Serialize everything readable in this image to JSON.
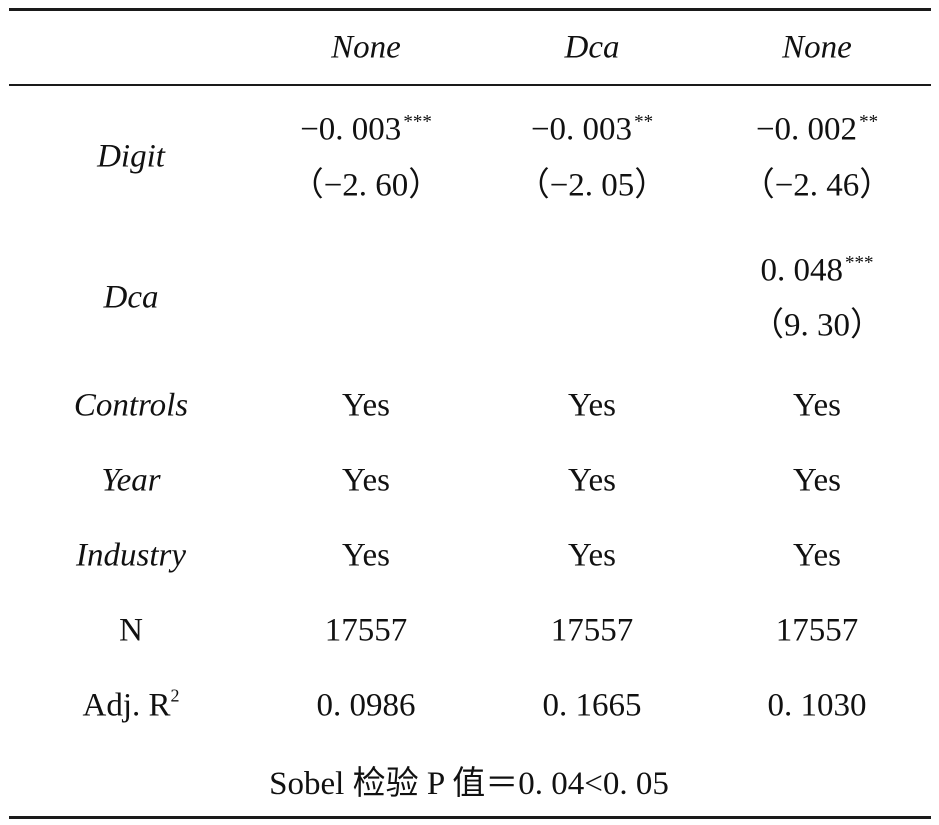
{
  "header": {
    "col2": "None",
    "col3": "Dca",
    "col4": "None"
  },
  "rows": {
    "digit": {
      "label": "Digit",
      "c2_coef": "−0. 003",
      "c2_stars": "***",
      "c2_t": "（−2. 60）",
      "c3_coef": "−0. 003",
      "c3_stars": "**",
      "c3_t": "（−2. 05）",
      "c4_coef": "−0. 002",
      "c4_stars": "**",
      "c4_t": "（−2. 46）"
    },
    "dca": {
      "label": "Dca",
      "c4_coef": "0. 048",
      "c4_stars": "***",
      "c4_t": "（9. 30）"
    },
    "controls": {
      "label": "Controls",
      "c2": "Yes",
      "c3": "Yes",
      "c4": "Yes"
    },
    "year": {
      "label": "Year",
      "c2": "Yes",
      "c3": "Yes",
      "c4": "Yes"
    },
    "industry": {
      "label": "Industry",
      "c2": "Yes",
      "c3": "Yes",
      "c4": "Yes"
    },
    "n": {
      "label": "N",
      "c2": "17557",
      "c3": "17557",
      "c4": "17557"
    },
    "adjr2": {
      "label": "Adj. R",
      "label_sup": "2",
      "c2": "0. 0986",
      "c3": "0. 1665",
      "c4": "0. 1030"
    }
  },
  "footer": {
    "text": "Sobel 检验 P 值＝0. 04<0. 05"
  }
}
